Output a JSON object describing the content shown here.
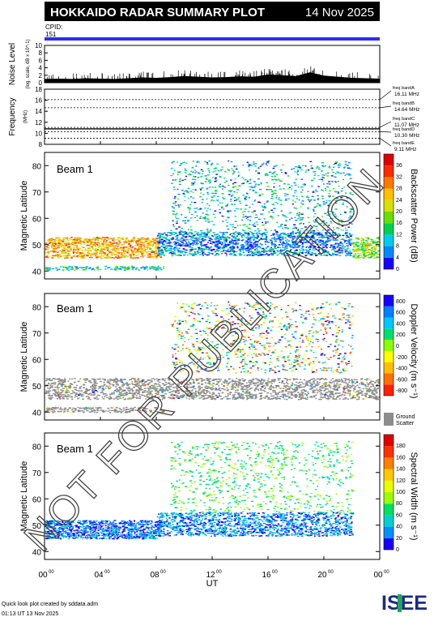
{
  "header": {
    "title": "HOKKAIDO RADAR SUMMARY PLOT",
    "date": "14 Nov 2025",
    "cpid_label": "CPID:",
    "cpid_value": "151"
  },
  "watermark": "NOT FOR PUBLICATION",
  "footer": {
    "credit": "Quick look plot created by sddata.adm",
    "timestamp": "01:13 UT 13 Nov 2025",
    "logo_text": "ISEE"
  },
  "colors": {
    "cpid_bar": "#2b2bff",
    "power_scale": [
      "#1a00ff",
      "#0088ff",
      "#00ccee",
      "#00d050",
      "#66e000",
      "#d8e000",
      "#ffc000",
      "#ff7800",
      "#ff2a00",
      "#e00000"
    ],
    "velocity_scale": [
      "#1800ff",
      "#0080ff",
      "#00c8ff",
      "#00e070",
      "#8aff00",
      "#ffff00",
      "#ffc000",
      "#ff7000",
      "#ff2000"
    ],
    "width_scale": [
      "#1800ff",
      "#0090ff",
      "#00d0d0",
      "#00e060",
      "#9aff00",
      "#e8ff00",
      "#ffc800",
      "#ff8000",
      "#ff3000",
      "#e00000"
    ],
    "ground_scatter": "#8c8c8c"
  },
  "chart_data": [
    {
      "type": "area",
      "panel": "noise",
      "ylabel": "Noise Level",
      "ylabel_unit": "(log. scale, dB x 10^-1)",
      "yticks": [
        "0",
        "2",
        "4",
        "6",
        "8",
        "10"
      ],
      "ylim": [
        0,
        10
      ],
      "x_hours": [
        0,
        1,
        2,
        3,
        4,
        5,
        6,
        7,
        8,
        9,
        10,
        11,
        12,
        13,
        14,
        15,
        16,
        17,
        18,
        19,
        20,
        21,
        22,
        23,
        24
      ],
      "values": [
        1.0,
        1.1,
        1.0,
        1.2,
        1.1,
        1.0,
        1.2,
        1.4,
        1.3,
        1.5,
        1.8,
        1.6,
        1.4,
        1.5,
        1.7,
        1.6,
        2.2,
        2.0,
        1.8,
        2.8,
        1.9,
        1.6,
        1.3,
        1.2,
        1.1
      ]
    },
    {
      "type": "line",
      "panel": "frequency",
      "ylabel": "Frequency",
      "ylabel_unit": "(MHz)",
      "yticks": [
        "8",
        "10",
        "12",
        "14",
        "16",
        "18"
      ],
      "ylim": [
        8,
        18
      ],
      "bands": [
        {
          "name": "freq bandA",
          "value": 16.11,
          "label": "16.11 MHz"
        },
        {
          "name": "freq bandB",
          "value": 14.64,
          "label": "14.64 MHz"
        },
        {
          "name": "freq bandC",
          "value": 11.07,
          "label": "11.07 MHz"
        },
        {
          "name": "freq bandD",
          "value": 10.3,
          "label": "10.30 MHz"
        },
        {
          "name": "freq bandE",
          "value": 9.11,
          "label": "9.11 MHz"
        }
      ],
      "transmit_frequency": 10.8
    },
    {
      "type": "heatmap",
      "panel": "power",
      "beam_label": "Beam  1",
      "ylabel": "Magnetic Latitude",
      "yticks": [
        "40",
        "50",
        "60",
        "70",
        "80"
      ],
      "ylim": [
        37,
        85
      ],
      "colorbar_label": "Backscatter Power (dB)",
      "colorbar_ticks": [
        "0",
        "4",
        "8",
        "12",
        "16",
        "20",
        "24",
        "28",
        "32",
        "36"
      ],
      "clim": [
        0,
        38
      ],
      "regions": [
        {
          "desc": "night echo band",
          "t": [
            0,
            8.3
          ],
          "lat": [
            45,
            53
          ],
          "value": 24
        },
        {
          "desc": "low latitude band",
          "t": [
            0,
            8.5
          ],
          "lat": [
            40.5,
            42
          ],
          "value": 10
        },
        {
          "desc": "main band",
          "t": [
            8,
            22
          ],
          "lat": [
            46,
            55
          ],
          "value": 6
        },
        {
          "desc": "patches",
          "t": [
            9,
            22
          ],
          "lat": [
            55,
            82
          ],
          "value": 8
        },
        {
          "desc": "morning band",
          "t": [
            22,
            24
          ],
          "lat": [
            45,
            53
          ],
          "value": 16
        }
      ]
    },
    {
      "type": "heatmap",
      "panel": "velocity",
      "beam_label": "Beam  1",
      "ylabel": "Magnetic Latitude",
      "yticks": [
        "40",
        "50",
        "60",
        "70",
        "80"
      ],
      "ylim": [
        37,
        85
      ],
      "colorbar_label": "Doppler Velocity (m s⁻¹)",
      "colorbar_ticks": [
        "800",
        "600",
        "400",
        "200",
        "0",
        "-200",
        "-400",
        "-600",
        "-800"
      ],
      "clim": [
        -900,
        900
      ],
      "ground_scatter_label": "Ground Scatter",
      "regions": [
        {
          "desc": "ground scatter band",
          "t": [
            0,
            24
          ],
          "lat": [
            45,
            53
          ],
          "value": "ground"
        },
        {
          "desc": "low latitude ground",
          "t": [
            0,
            8.5
          ],
          "lat": [
            40,
            42
          ],
          "value": "ground"
        },
        {
          "desc": "patches",
          "t": [
            9,
            22
          ],
          "lat": [
            55,
            82
          ],
          "value": 0
        }
      ]
    },
    {
      "type": "heatmap",
      "panel": "width",
      "beam_label": "Beam  1",
      "ylabel": "Magnetic Latitude",
      "yticks": [
        "40",
        "50",
        "60",
        "70",
        "80"
      ],
      "ylim": [
        37,
        85
      ],
      "colorbar_label": "Spectral Width (m s⁻¹)",
      "colorbar_ticks": [
        "0",
        "20",
        "40",
        "60",
        "80",
        "100",
        "120",
        "140",
        "160",
        "180"
      ],
      "clim": [
        0,
        190
      ],
      "regions": [
        {
          "desc": "night band",
          "t": [
            0,
            8.3
          ],
          "lat": [
            45,
            52
          ],
          "value": 15
        },
        {
          "desc": "main band",
          "t": [
            8,
            22
          ],
          "lat": [
            46,
            55
          ],
          "value": 20
        },
        {
          "desc": "patches",
          "t": [
            9,
            22
          ],
          "lat": [
            55,
            82
          ],
          "value": 60
        }
      ]
    }
  ],
  "x_axis": {
    "label": "UT",
    "ticks": [
      "00",
      "04",
      "08",
      "12",
      "16",
      "20",
      "00"
    ],
    "tick_sup": "00",
    "range_hours": [
      0,
      24
    ]
  }
}
